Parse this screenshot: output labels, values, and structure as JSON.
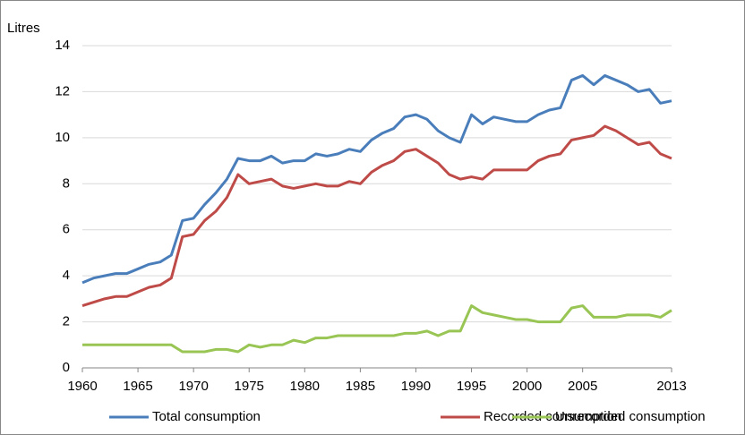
{
  "chart_data": {
    "type": "line",
    "y_label": "Litres",
    "x": [
      1960,
      1961,
      1962,
      1963,
      1964,
      1965,
      1966,
      1967,
      1968,
      1969,
      1970,
      1971,
      1972,
      1973,
      1974,
      1975,
      1976,
      1977,
      1978,
      1979,
      1980,
      1981,
      1982,
      1983,
      1984,
      1985,
      1986,
      1987,
      1988,
      1989,
      1990,
      1991,
      1992,
      1993,
      1994,
      1995,
      1996,
      1997,
      1998,
      1999,
      2000,
      2001,
      2002,
      2003,
      2004,
      2005,
      2006,
      2007,
      2008,
      2009,
      2010,
      2011,
      2012,
      2013
    ],
    "series": [
      {
        "name": "Total consumption",
        "color": "#4a7ebb",
        "values": [
          3.7,
          3.9,
          4.0,
          4.1,
          4.1,
          4.3,
          4.5,
          4.6,
          4.9,
          6.4,
          6.5,
          7.1,
          7.6,
          8.2,
          9.1,
          9.0,
          9.0,
          9.2,
          8.9,
          9.0,
          9.0,
          9.3,
          9.2,
          9.3,
          9.5,
          9.4,
          9.9,
          10.2,
          10.4,
          10.9,
          11.0,
          10.8,
          10.3,
          10.0,
          9.8,
          11.0,
          10.6,
          10.9,
          10.8,
          10.7,
          10.7,
          11.0,
          11.2,
          11.3,
          12.5,
          12.7,
          12.3,
          12.7,
          12.5,
          12.3,
          12.0,
          12.1,
          11.5,
          11.6
        ]
      },
      {
        "name": "Recorded consumption",
        "color": "#be4b48",
        "values": [
          2.7,
          2.85,
          3.0,
          3.1,
          3.1,
          3.3,
          3.5,
          3.6,
          3.9,
          5.7,
          5.8,
          6.4,
          6.8,
          7.4,
          8.4,
          8.0,
          8.1,
          8.2,
          7.9,
          7.8,
          7.9,
          8.0,
          7.9,
          7.9,
          8.1,
          8.0,
          8.5,
          8.8,
          9.0,
          9.4,
          9.5,
          9.2,
          8.9,
          8.4,
          8.2,
          8.3,
          8.2,
          8.6,
          8.6,
          8.6,
          8.6,
          9.0,
          9.2,
          9.3,
          9.9,
          10.0,
          10.1,
          10.5,
          10.3,
          10.0,
          9.7,
          9.8,
          9.3,
          9.1
        ]
      },
      {
        "name": "Unrecorded consumption",
        "color": "#98c554",
        "values": [
          1.0,
          1.0,
          1.0,
          1.0,
          1.0,
          1.0,
          1.0,
          1.0,
          1.0,
          0.7,
          0.7,
          0.7,
          0.8,
          0.8,
          0.7,
          1.0,
          0.9,
          1.0,
          1.0,
          1.2,
          1.1,
          1.3,
          1.3,
          1.4,
          1.4,
          1.4,
          1.4,
          1.4,
          1.4,
          1.5,
          1.5,
          1.6,
          1.4,
          1.6,
          1.6,
          2.7,
          2.4,
          2.3,
          2.2,
          2.1,
          2.1,
          2.0,
          2.0,
          2.0,
          2.6,
          2.7,
          2.2,
          2.2,
          2.2,
          2.3,
          2.3,
          2.3,
          2.2,
          2.5
        ]
      }
    ],
    "xlim": [
      1960,
      2013
    ],
    "xticks": [
      1960,
      1965,
      1970,
      1975,
      1980,
      1985,
      1990,
      1995,
      2000,
      2005,
      2013
    ],
    "ylim": [
      0,
      14
    ],
    "yticks": [
      0,
      2,
      4,
      6,
      8,
      10,
      12,
      14
    ],
    "grid": true,
    "legend": "bottom"
  }
}
